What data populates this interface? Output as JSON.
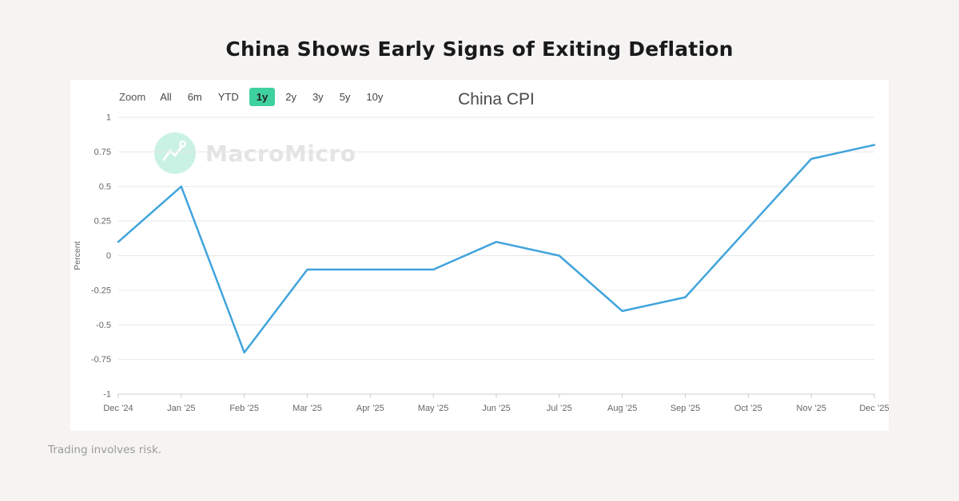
{
  "page": {
    "title": "China Shows Early Signs of Exiting Deflation",
    "footer": "Trading involves risk."
  },
  "toolbar": {
    "zoom_label": "Zoom",
    "selected_color": "#3fd0a0",
    "items": [
      {
        "label": "All",
        "selected": false
      },
      {
        "label": "6m",
        "selected": false
      },
      {
        "label": "YTD",
        "selected": false
      },
      {
        "label": "1y",
        "selected": true
      },
      {
        "label": "2y",
        "selected": false
      },
      {
        "label": "3y",
        "selected": false
      },
      {
        "label": "5y",
        "selected": false
      },
      {
        "label": "10y",
        "selected": false
      }
    ]
  },
  "watermark": {
    "brand": "MacroMicro",
    "icon": "macromicro-logo-icon",
    "circle_color": "#c9f2e4",
    "text_color": "#e4e4e4"
  },
  "chart_data": {
    "type": "line",
    "title": "China CPI",
    "ylabel": "Percent",
    "x": [
      "Dec ’24",
      "Jan ’25",
      "Feb ’25",
      "Mar ’25",
      "Apr ’25",
      "May ’25",
      "Jun ’25",
      "Jul ’25",
      "Aug ’25",
      "Sep ’25",
      "Oct ’25",
      "Nov ’25",
      "Dec ’25"
    ],
    "values": [
      0.1,
      0.5,
      -0.7,
      -0.1,
      -0.1,
      -0.1,
      0.1,
      0.0,
      -0.4,
      -0.3,
      0.2,
      0.7,
      0.8
    ],
    "ylim": [
      -1,
      1
    ],
    "ytick_step": 0.25,
    "ytick_labels": [
      "1",
      "0.75",
      "0.5",
      "0.25",
      "0",
      "-0.25",
      "-0.5",
      "-0.75",
      "-1"
    ],
    "grid": true,
    "legend": "none",
    "line_color": "#41a4dc",
    "grid_color": "#e7e7e7",
    "axis_line_color": "#cccccc",
    "axis_label_color": "#666666"
  }
}
